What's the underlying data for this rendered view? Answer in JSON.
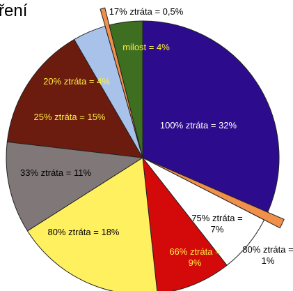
{
  "chart_data": {
    "type": "pie",
    "title": "ření",
    "categories": [
      "100% ztráta = 32%",
      "80% ztráta = 1%",
      "75% ztráta = 7%",
      "66% ztráta = 9%",
      "80% ztráta = 18%",
      "33% ztráta = 11%",
      "25% ztráta = 15%",
      "20% ztráta = 4%",
      "17% ztráta = 0,5%",
      "milost = 4%"
    ],
    "values": [
      32,
      1,
      7,
      9,
      18,
      11,
      15,
      4,
      0.5,
      4
    ],
    "colors": [
      "#2c0c8c",
      "#f0904a",
      "#ffffff",
      "#d40a0a",
      "#fff060",
      "#807878",
      "#6c1c0e",
      "#a8c2ea",
      "#f0904a",
      "#3e6e20"
    ]
  }
}
